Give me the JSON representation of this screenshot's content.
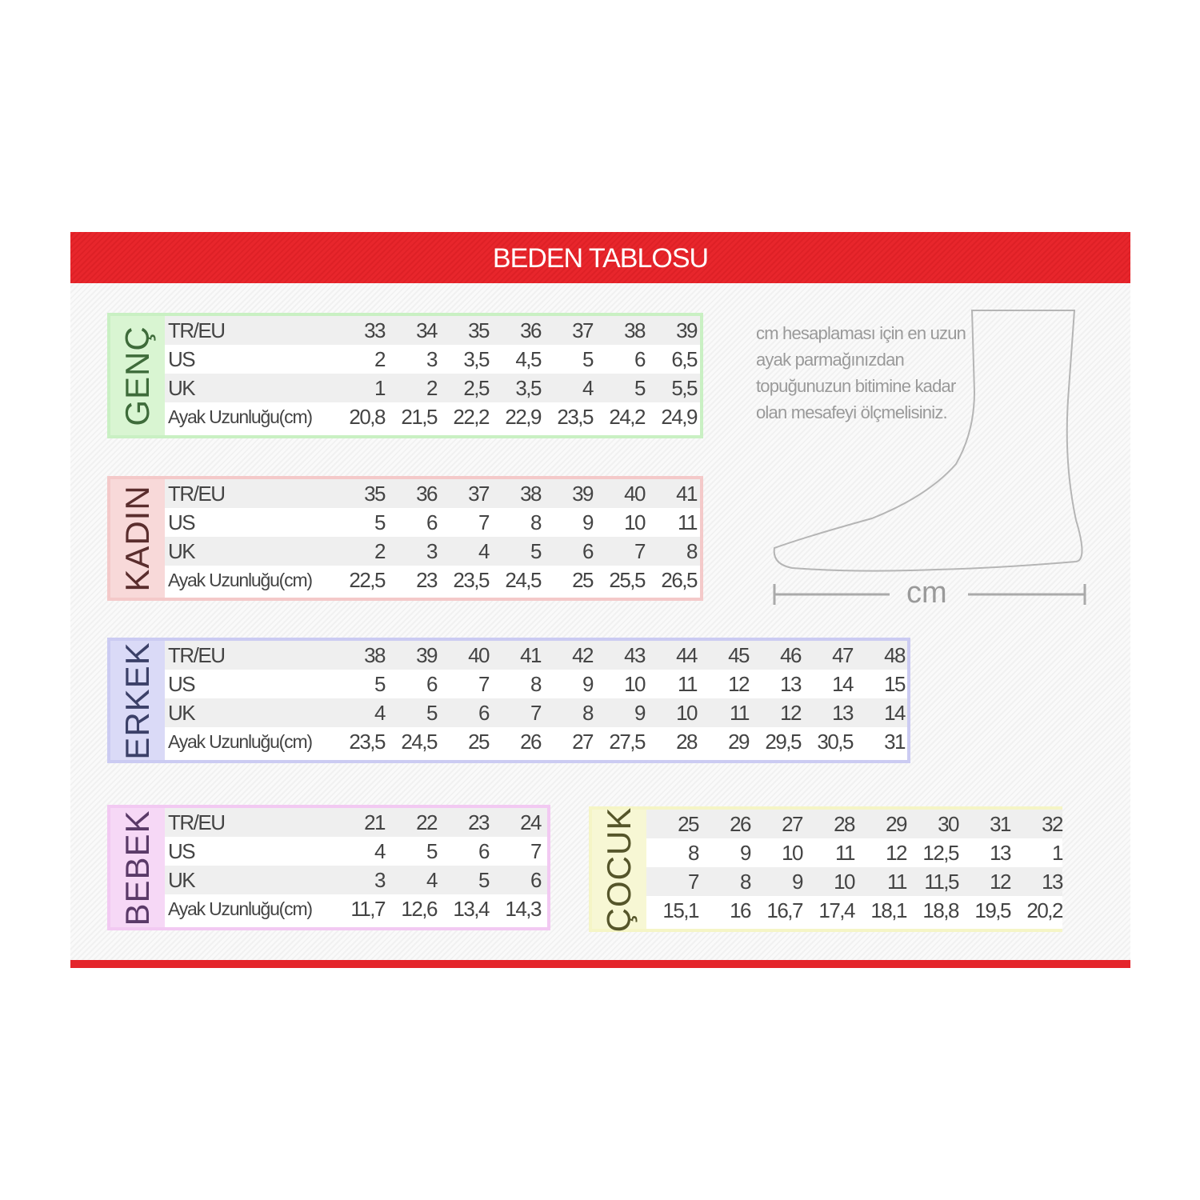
{
  "title": "BEDEN TABLOSU",
  "note": "cm hesaplaması için en uzun ayak parmağınızdan topuğunuzun bitimine kadar olan mesafeyi ölçmelisiniz.",
  "measure_label": "cm",
  "colors": {
    "header": "#e4252b"
  },
  "tables": [
    {
      "id": "genc",
      "label": "GENÇ",
      "border": "#c9f0c3",
      "side_bg": "#d9f5d2",
      "text_color": "#3e6b3a",
      "rows": [
        {
          "label": "TR/EU",
          "values": [
            "33",
            "34",
            "35",
            "36",
            "37",
            "38",
            "39"
          ]
        },
        {
          "label": "US",
          "values": [
            "2",
            "3",
            "3,5",
            "4,5",
            "5",
            "6",
            "6,5"
          ]
        },
        {
          "label": "UK",
          "values": [
            "1",
            "2",
            "2,5",
            "3,5",
            "4",
            "5",
            "5,5"
          ]
        },
        {
          "label": "Ayak Uzunluğu(cm)",
          "values": [
            "20,8",
            "21,5",
            "22,2",
            "22,9",
            "23,5",
            "24,2",
            "24,9"
          ]
        }
      ]
    },
    {
      "id": "kadin",
      "label": "KADIN",
      "border": "#f4c9c9",
      "side_bg": "#f8d9d9",
      "text_color": "#5a2d2d",
      "rows": [
        {
          "label": "TR/EU",
          "values": [
            "35",
            "36",
            "37",
            "38",
            "39",
            "40",
            "41"
          ]
        },
        {
          "label": "US",
          "values": [
            "5",
            "6",
            "7",
            "8",
            "9",
            "10",
            "11"
          ]
        },
        {
          "label": "UK",
          "values": [
            "2",
            "3",
            "4",
            "5",
            "6",
            "7",
            "8"
          ]
        },
        {
          "label": "Ayak Uzunluğu(cm)",
          "values": [
            "22,5",
            "23",
            "23,5",
            "24,5",
            "25",
            "25,5",
            "26,5"
          ]
        }
      ]
    },
    {
      "id": "erkek",
      "label": "ERKEK",
      "border": "#cbcbf2",
      "side_bg": "#dadaf7",
      "text_color": "#3b4068",
      "rows": [
        {
          "label": "TR/EU",
          "values": [
            "38",
            "39",
            "40",
            "41",
            "42",
            "43",
            "44",
            "45",
            "46",
            "47",
            "48"
          ]
        },
        {
          "label": "US",
          "values": [
            "5",
            "6",
            "7",
            "8",
            "9",
            "10",
            "11",
            "12",
            "13",
            "14",
            "15"
          ]
        },
        {
          "label": "UK",
          "values": [
            "4",
            "5",
            "6",
            "7",
            "8",
            "9",
            "10",
            "11",
            "12",
            "13",
            "14"
          ]
        },
        {
          "label": "Ayak Uzunluğu(cm)",
          "values": [
            "23,5",
            "24,5",
            "25",
            "26",
            "27",
            "27,5",
            "28",
            "29",
            "29,5",
            "30,5",
            "31"
          ]
        }
      ]
    },
    {
      "id": "bebek",
      "label": "BEBEK",
      "border": "#f2c9f2",
      "side_bg": "#f6d8f6",
      "text_color": "#5a3a68",
      "rows": [
        {
          "label": "TR/EU",
          "values": [
            "21",
            "22",
            "23",
            "24"
          ]
        },
        {
          "label": "US",
          "values": [
            "4",
            "5",
            "6",
            "7"
          ]
        },
        {
          "label": "UK",
          "values": [
            "3",
            "4",
            "5",
            "6"
          ]
        },
        {
          "label": "Ayak Uzunluğu(cm)",
          "values": [
            "11,7",
            "12,6",
            "13,4",
            "14,3"
          ]
        }
      ]
    },
    {
      "id": "cocuk",
      "label": "ÇOCUK",
      "border": "#f5f5c6",
      "side_bg": "#f7f7d4",
      "text_color": "#55552a",
      "rows": [
        {
          "values": [
            "25",
            "26",
            "27",
            "28",
            "29",
            "30",
            "31",
            "32"
          ]
        },
        {
          "values": [
            "8",
            "9",
            "10",
            "11",
            "12",
            "12,5",
            "13",
            "1"
          ]
        },
        {
          "values": [
            "7",
            "8",
            "9",
            "10",
            "11",
            "11,5",
            "12",
            "13"
          ]
        },
        {
          "values": [
            "15,1",
            "16",
            "16,7",
            "17,4",
            "18,1",
            "18,8",
            "19,5",
            "20,2"
          ]
        }
      ]
    }
  ]
}
